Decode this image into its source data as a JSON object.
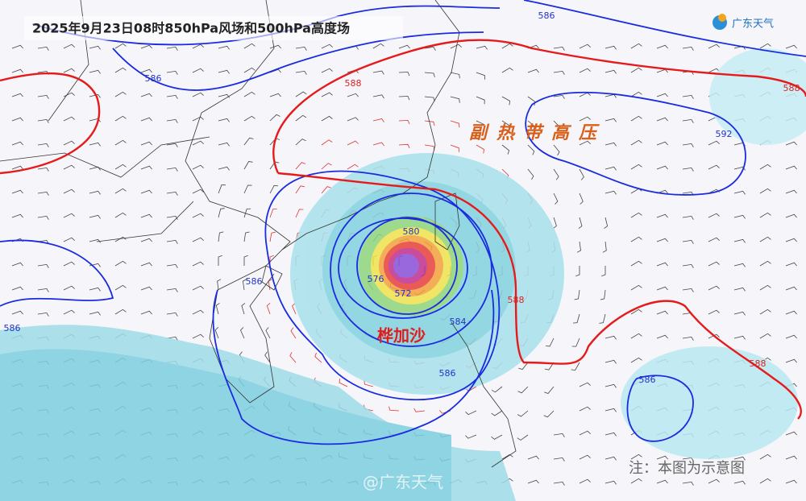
{
  "header": {
    "title": "2025年9月23日08时850hPa风场和500hPa高度场",
    "logo": "广东天气"
  },
  "contour_labels": [
    "586",
    "586",
    "588",
    "588",
    "592",
    "580",
    "576",
    "572",
    "584",
    "588",
    "586",
    "586",
    "586",
    "586",
    "588"
  ],
  "annotations": {
    "subtropical_high": "副热带高压",
    "typhoon": "桦加沙",
    "note": "注：本图为示意图",
    "watermark": "@广东天气"
  }
}
